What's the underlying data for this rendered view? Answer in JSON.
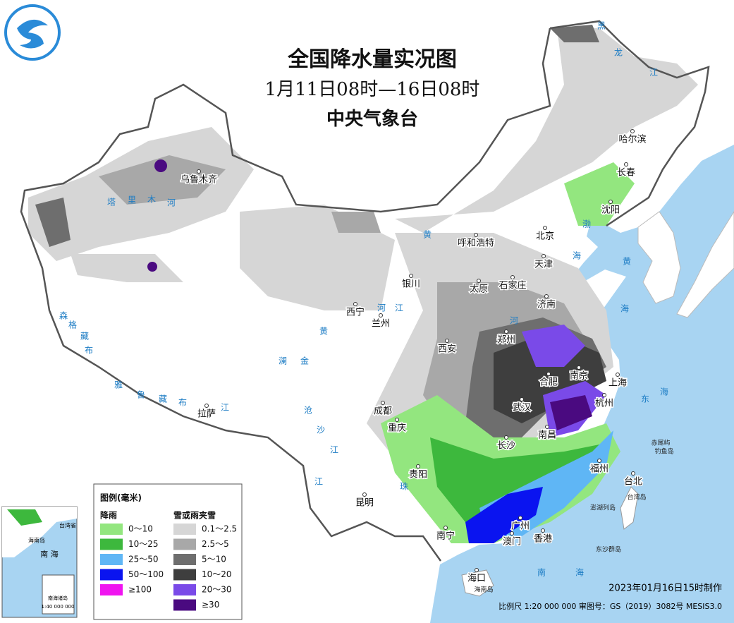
{
  "header": {
    "title": "全国降水量实况图",
    "period": "1月11日08时—16日08时",
    "agency": "中央气象台"
  },
  "legend": {
    "title": "图例(毫米)",
    "rain": {
      "title": "降雨",
      "items": [
        {
          "label": "0～10",
          "color": "#93e67f"
        },
        {
          "label": "10～25",
          "color": "#3db83d"
        },
        {
          "label": "25～50",
          "color": "#5fb6f5"
        },
        {
          "label": "50～100",
          "color": "#0a14f0"
        },
        {
          "label": "≥100",
          "color": "#f014f0"
        }
      ]
    },
    "snow": {
      "title": "雪或雨夹雪",
      "items": [
        {
          "label": "0.1～2.5",
          "color": "#d6d6d6"
        },
        {
          "label": "2.5～5",
          "color": "#a8a8a8"
        },
        {
          "label": "5～10",
          "color": "#6e6e6e"
        },
        {
          "label": "10～20",
          "color": "#3e3e3e"
        },
        {
          "label": "20～30",
          "color": "#7a4ae8"
        },
        {
          "label": "≥30",
          "color": "#4a0a80"
        }
      ]
    }
  },
  "map_labels": {
    "cities": [
      "乌鲁木齐",
      "哈尔滨",
      "长春",
      "沈阳",
      "呼和浩特",
      "北京",
      "天津",
      "石家庄",
      "太原",
      "济南",
      "银川",
      "西宁",
      "兰州",
      "郑州",
      "西安",
      "合肥",
      "南京",
      "上海",
      "武汉",
      "杭州",
      "成都",
      "重庆",
      "南昌",
      "长沙",
      "福州",
      "贵阳",
      "台北",
      "昆明",
      "南宁",
      "广州",
      "澳门",
      "香港",
      "海口",
      "拉萨"
    ],
    "islands": [
      "赤尾屿",
      "钓鱼岛",
      "台湾岛",
      "澎湖列岛",
      "东沙群岛",
      "海南岛"
    ],
    "water": [
      "塔",
      "里",
      "木",
      "河",
      "黄",
      "河",
      "黄",
      "河",
      "森",
      "格",
      "藏",
      "布",
      "雅",
      "鲁",
      "藏",
      "布",
      "江",
      "澜",
      "金",
      "沧",
      "沙",
      "江",
      "江",
      "珠",
      "江",
      "渤",
      "海",
      "黄",
      "海",
      "东",
      "海",
      "南",
      "海",
      "黑",
      "龙",
      "江"
    ]
  },
  "inset": {
    "labels": [
      "台湾省",
      "海南岛",
      "南 海",
      "南海诸岛",
      "1:40 000 000"
    ]
  },
  "footer": {
    "made": "2023年01月16日15时制作",
    "scale": "比例尺 1:20 000 000 审图号：GS（2019）3082号 MESIS3.0"
  }
}
